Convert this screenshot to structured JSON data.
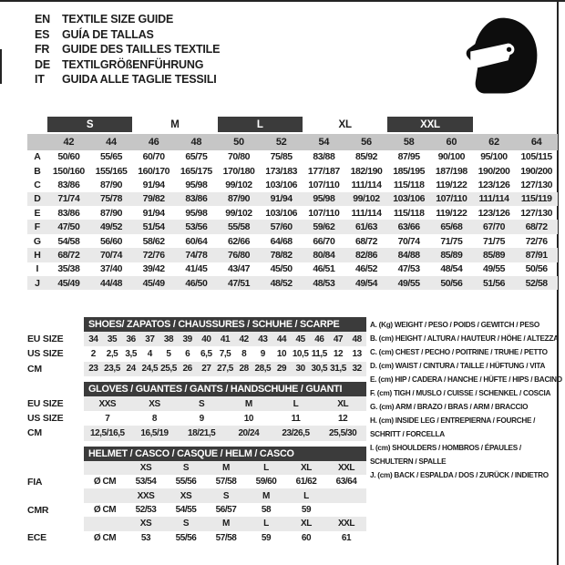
{
  "colors": {
    "dark_bar": "#3b3b3b",
    "number_band": "#c6c6c6",
    "row_stripe": "#e9e9e9",
    "helmet_icon": "#0d0d0d"
  },
  "header": {
    "languages": [
      {
        "code": "EN",
        "text": "TEXTILE SIZE GUIDE"
      },
      {
        "code": "ES",
        "text": "GUÍA DE TALLAS"
      },
      {
        "code": "FR",
        "text": "GUIDE DES TAILLES TEXTILE"
      },
      {
        "code": "DE",
        "text": "TEXTILGRÖßENFÜHRUNG"
      },
      {
        "code": "IT",
        "text": "GUIDA ALLE TAGLIE TESSILI"
      }
    ],
    "icon": "helmet-icon"
  },
  "main_table": {
    "groups": [
      {
        "label": "S",
        "dark": true
      },
      {
        "label": "M",
        "dark": false
      },
      {
        "label": "L",
        "dark": true
      },
      {
        "label": "XL",
        "dark": false
      },
      {
        "label": "XXL",
        "dark": true
      }
    ],
    "columns": [
      "42",
      "44",
      "46",
      "48",
      "50",
      "52",
      "54",
      "56",
      "58",
      "60",
      "62",
      "64"
    ],
    "rows": [
      {
        "letter": "A",
        "shaded": false,
        "values": [
          "50/60",
          "55/65",
          "60/70",
          "65/75",
          "70/80",
          "75/85",
          "83/88",
          "85/92",
          "87/95",
          "90/100",
          "95/100",
          "105/115"
        ]
      },
      {
        "letter": "B",
        "shaded": false,
        "values": [
          "150/160",
          "155/165",
          "160/170",
          "165/175",
          "170/180",
          "173/183",
          "177/187",
          "182/190",
          "185/195",
          "187/198",
          "190/200",
          "190/200"
        ]
      },
      {
        "letter": "C",
        "shaded": false,
        "values": [
          "83/86",
          "87/90",
          "91/94",
          "95/98",
          "99/102",
          "103/106",
          "107/110",
          "111/114",
          "115/118",
          "119/122",
          "123/126",
          "127/130"
        ]
      },
      {
        "letter": "D",
        "shaded": true,
        "values": [
          "71/74",
          "75/78",
          "79/82",
          "83/86",
          "87/90",
          "91/94",
          "95/98",
          "99/102",
          "103/106",
          "107/110",
          "111/114",
          "115/119"
        ]
      },
      {
        "letter": "E",
        "shaded": false,
        "values": [
          "83/86",
          "87/90",
          "91/94",
          "95/98",
          "99/102",
          "103/106",
          "107/110",
          "111/114",
          "115/118",
          "119/122",
          "123/126",
          "127/130"
        ]
      },
      {
        "letter": "F",
        "shaded": true,
        "values": [
          "47/50",
          "49/52",
          "51/54",
          "53/56",
          "55/58",
          "57/60",
          "59/62",
          "61/63",
          "63/66",
          "65/68",
          "67/70",
          "68/72"
        ]
      },
      {
        "letter": "G",
        "shaded": false,
        "values": [
          "54/58",
          "56/60",
          "58/62",
          "60/64",
          "62/66",
          "64/68",
          "66/70",
          "68/72",
          "70/74",
          "71/75",
          "71/75",
          "72/76"
        ]
      },
      {
        "letter": "H",
        "shaded": true,
        "values": [
          "68/72",
          "70/74",
          "72/76",
          "74/78",
          "76/80",
          "78/82",
          "80/84",
          "82/86",
          "84/88",
          "85/89",
          "85/89",
          "87/91"
        ]
      },
      {
        "letter": "I",
        "shaded": false,
        "values": [
          "35/38",
          "37/40",
          "39/42",
          "41/45",
          "43/47",
          "45/50",
          "46/51",
          "46/52",
          "47/53",
          "48/54",
          "49/55",
          "50/56"
        ]
      },
      {
        "letter": "J",
        "shaded": true,
        "values": [
          "45/49",
          "44/48",
          "45/49",
          "46/50",
          "47/51",
          "48/52",
          "48/53",
          "49/54",
          "49/55",
          "50/56",
          "51/56",
          "52/58"
        ]
      }
    ]
  },
  "shoes_table": {
    "title": "SHOES/ ZAPATOS / CHAUSSURES / SCHUHE / SCARPE",
    "rows": [
      {
        "label": "EU SIZE",
        "shaded": true,
        "values": [
          "34",
          "35",
          "36",
          "37",
          "38",
          "39",
          "40",
          "41",
          "42",
          "43",
          "44",
          "45",
          "46",
          "47",
          "48"
        ]
      },
      {
        "label": "US SIZE",
        "shaded": false,
        "values": [
          "2",
          "2,5",
          "3,5",
          "4",
          "5",
          "6",
          "6,5",
          "7,5",
          "8",
          "9",
          "10",
          "10,5",
          "11,5",
          "12",
          "13"
        ]
      },
      {
        "label": "CM",
        "shaded": true,
        "values": [
          "23",
          "23,5",
          "24",
          "24,5",
          "25,5",
          "26",
          "27",
          "27,5",
          "28",
          "28,5",
          "29",
          "30",
          "30,5",
          "31,5",
          "32"
        ]
      }
    ]
  },
  "gloves_table": {
    "title": "GLOVES / GUANTES / GANTS / HANDSCHUHE / GUANTI",
    "rows": [
      {
        "label": "EU SIZE",
        "shaded": true,
        "values": [
          "XXS",
          "XS",
          "S",
          "M",
          "L",
          "XL"
        ]
      },
      {
        "label": "US SIZE",
        "shaded": false,
        "values": [
          "7",
          "8",
          "9",
          "10",
          "11",
          "12"
        ]
      },
      {
        "label": "CM",
        "shaded": true,
        "values": [
          "12,5/16,5",
          "16,5/19",
          "18/21,5",
          "20/24",
          "23/26,5",
          "25,5/30"
        ]
      }
    ]
  },
  "helmet_table": {
    "title": "HELMET / CASCO / CASQUE / HELM / CASCO",
    "rows": [
      {
        "label": "",
        "diam": "",
        "shaded": true,
        "values": [
          "XS",
          "S",
          "M",
          "L",
          "XL",
          "XXL"
        ]
      },
      {
        "label": "FIA",
        "diam": "Ø CM",
        "shaded": false,
        "values": [
          "53/54",
          "55/56",
          "57/58",
          "59/60",
          "61/62",
          "63/64"
        ]
      },
      {
        "label": "",
        "diam": "",
        "shaded": true,
        "values": [
          "XXS",
          "XS",
          "S",
          "M",
          "L",
          ""
        ]
      },
      {
        "label": "CMR",
        "diam": "Ø CM",
        "shaded": false,
        "values": [
          "52/53",
          "54/55",
          "56/57",
          "58",
          "59",
          ""
        ]
      },
      {
        "label": "",
        "diam": "",
        "shaded": true,
        "values": [
          "XS",
          "S",
          "M",
          "L",
          "XL",
          "XXL"
        ]
      },
      {
        "label": "ECE",
        "diam": "Ø CM",
        "shaded": false,
        "values": [
          "53",
          "55/56",
          "57/58",
          "59",
          "60",
          "61"
        ]
      }
    ]
  },
  "measurements": [
    {
      "lines": [
        "A. (Kg) WEIGHT / PESO / POIDS / GEWITCH / PESO"
      ]
    },
    {
      "lines": [
        "B. (cm) HEIGHT / ALTURA / HAUTEUR / HÖHE / ALTEZZA"
      ]
    },
    {
      "lines": [
        "C. (cm) CHEST / PECHO / POITRINE / TRUHE / PETTO"
      ]
    },
    {
      "lines": [
        "D. (cm) WAIST / CINTURA / TAILLE / HÜFTUNG / VITA"
      ]
    },
    {
      "lines": [
        "E. (cm) HIP / CADERA / HANCHE / HÜFTE / HIPS /  BACINO"
      ]
    },
    {
      "lines": [
        "F. (cm) TIGH / MUSLO / CUISSE / SCHENKEL / COSCIA"
      ]
    },
    {
      "lines": [
        "G. (cm) ARM  / BRAZO / BRAS / ARM / BRACCIO"
      ]
    },
    {
      "lines": [
        "H. (cm) INSIDE LEG / ENTREPIERNA / FOURCHE /",
        "SCHRITT / FORCELLA"
      ]
    },
    {
      "lines": [
        "I.  (cm) SHOULDERS / HOMBROS / ÉPAULES /",
        "SCHULTERN / SPALLE"
      ]
    },
    {
      "lines": [
        "J. (cm) BACK / ESPALDA / DOS / ZURÜCK / INDIETRO"
      ]
    }
  ]
}
